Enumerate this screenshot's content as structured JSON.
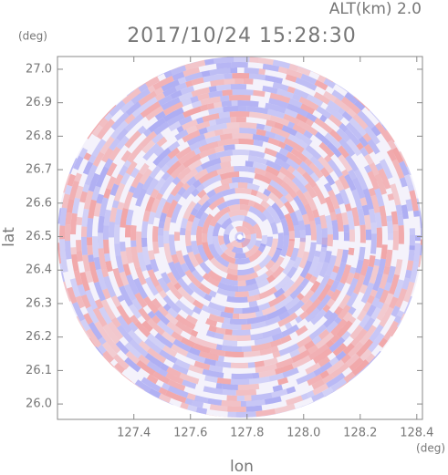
{
  "chart_data": {
    "type": "radar-ppi",
    "title": "2017/10/24 15:28:30",
    "altitude_label": "ALT(km) 2.0",
    "x_label": "lon",
    "y_label": "lat",
    "x_unit": "(deg)",
    "y_unit": "(deg)",
    "xlim": [
      127.13,
      128.42
    ],
    "ylim": [
      25.954,
      27.038
    ],
    "xticks": [
      127.4,
      127.6,
      127.8,
      {
        "value": 128,
        "label": "128.0"
      },
      128.2,
      128.4
    ],
    "yticks": [
      {
        "value": 26,
        "label": "26.0"
      },
      26.1,
      26.2,
      26.3,
      26.4,
      26.5,
      26.6,
      26.7,
      26.8,
      26.9,
      {
        "value": 27,
        "label": "27.0"
      }
    ]
  }
}
